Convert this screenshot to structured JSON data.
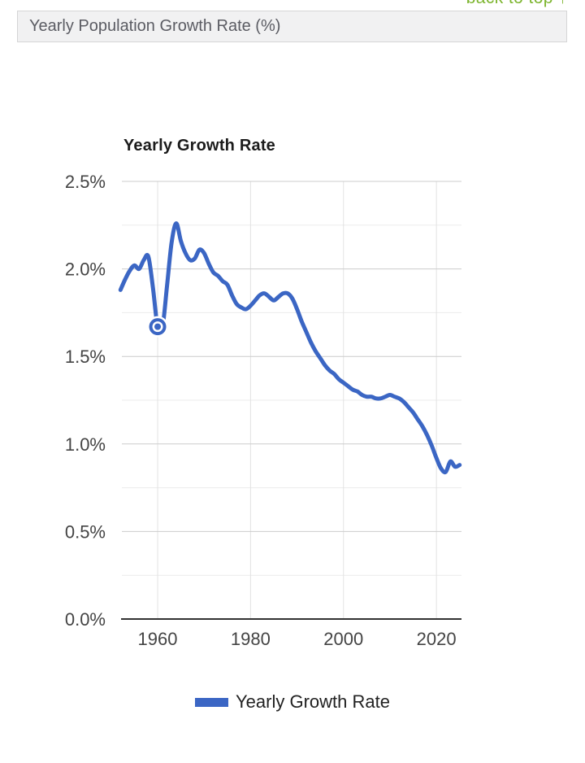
{
  "page": {
    "back_to_top": "back to top ↑",
    "header_title": "Yearly Population Growth Rate (%)"
  },
  "chart_data": {
    "type": "line",
    "title": "Yearly Growth Rate",
    "legend_position": "bottom",
    "grid": true,
    "xlim": [
      1952.3,
      2025.4
    ],
    "ylim": [
      0,
      2.5
    ],
    "xaxis": {
      "ticks": [
        1960,
        1980,
        2000,
        2020
      ],
      "tick_labels": [
        "1960",
        "1980",
        "2000",
        "2020"
      ]
    },
    "yaxis": {
      "major_ticks": [
        0,
        0.5,
        1.0,
        1.5,
        2.0,
        2.5
      ],
      "tick_labels": [
        "0.0%",
        "0.5%",
        "1.0%",
        "1.5%",
        "2.0%",
        "2.5%"
      ],
      "minor_ticks": [
        0.25,
        0.75,
        1.25,
        1.75,
        2.25
      ]
    },
    "series": [
      {
        "name": "Yearly Growth Rate",
        "x": [
          1952,
          1953,
          1954,
          1955,
          1956,
          1957,
          1958,
          1959,
          1960,
          1961,
          1962,
          1963,
          1964,
          1965,
          1966,
          1967,
          1968,
          1969,
          1970,
          1971,
          1972,
          1973,
          1974,
          1975,
          1976,
          1977,
          1978,
          1979,
          1980,
          1981,
          1982,
          1983,
          1984,
          1985,
          1986,
          1987,
          1988,
          1989,
          1990,
          1991,
          1992,
          1993,
          1994,
          1995,
          1996,
          1997,
          1998,
          1999,
          2000,
          2001,
          2002,
          2003,
          2004,
          2005,
          2006,
          2007,
          2008,
          2009,
          2010,
          2011,
          2012,
          2013,
          2014,
          2015,
          2016,
          2017,
          2018,
          2019,
          2020,
          2021,
          2022,
          2023,
          2024,
          2025
        ],
        "values": [
          1.88,
          1.94,
          1.99,
          2.02,
          2.0,
          2.05,
          2.07,
          1.89,
          1.67,
          1.66,
          1.9,
          2.15,
          2.26,
          2.16,
          2.09,
          2.05,
          2.06,
          2.11,
          2.09,
          2.03,
          1.98,
          1.96,
          1.93,
          1.91,
          1.85,
          1.8,
          1.78,
          1.77,
          1.79,
          1.82,
          1.85,
          1.86,
          1.84,
          1.82,
          1.84,
          1.86,
          1.86,
          1.83,
          1.77,
          1.7,
          1.64,
          1.58,
          1.53,
          1.49,
          1.45,
          1.42,
          1.4,
          1.37,
          1.35,
          1.33,
          1.31,
          1.3,
          1.28,
          1.27,
          1.27,
          1.26,
          1.26,
          1.27,
          1.28,
          1.27,
          1.26,
          1.24,
          1.21,
          1.18,
          1.14,
          1.1,
          1.05,
          0.99,
          0.92,
          0.86,
          0.84,
          0.9,
          0.87,
          0.88
        ]
      }
    ],
    "highlight": {
      "year": 1960,
      "value": 1.67
    },
    "colors": {
      "line": "#3b66c4",
      "grid_major": "#cccccc",
      "grid_minor": "#ebebeb",
      "grid_vertical": "#e2e2e2",
      "axis": "#333333",
      "tick_label": "#444444",
      "legend_text": "#222222",
      "title_text": "#1b1b1b",
      "header_bg": "#f1f1f2",
      "header_border": "#d5d5d6",
      "header_text": "#5b5c63",
      "link_green": "#7db52f"
    }
  }
}
